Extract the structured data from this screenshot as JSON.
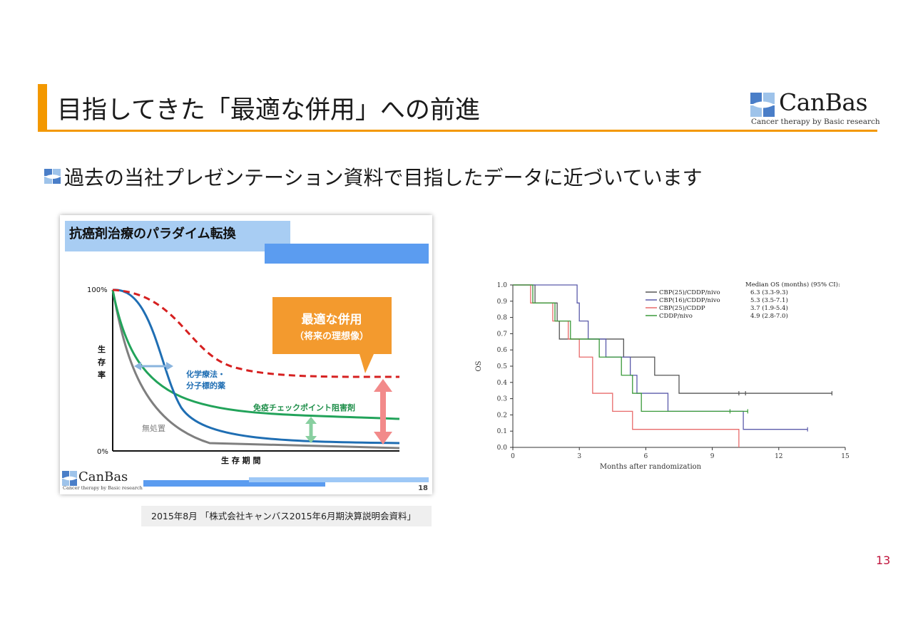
{
  "header": {
    "title": "目指してきた「最適な併用」への前進",
    "logo_name": "CanBas",
    "logo_tagline": "Cancer therapy by Basic research"
  },
  "bullet": {
    "text": "過去の当社プレゼンテーション資料で目指したデータに近づいています"
  },
  "slide": {
    "title": "抗癌剤治療のパラダイム転換",
    "y_top": "100%",
    "y_bottom": "0%",
    "y_label": "生存率",
    "x_label": "生 存 期 間",
    "callout_main": "最適な併用",
    "callout_sub": "（将来の理想像）",
    "label_chemo_1": "化学療法・",
    "label_chemo_2": "分子標的薬",
    "label_checkpoint": "免疫チェックポイント阻害剤",
    "label_untreated": "無処置",
    "page_number": "18",
    "logo_name": "CanBas",
    "logo_tagline": "Cancer therapy by Basic research"
  },
  "caption": "2015年8月 「株式会社キャンバス2015年6月期決算説明会資料」",
  "page_number": "13",
  "colors": {
    "accent": "#f39800",
    "page_number": "#c0143c"
  },
  "chart_data": {
    "type": "line",
    "step": true,
    "xlabel": "Months after randomization",
    "ylabel": "OS",
    "xlim": [
      0,
      15
    ],
    "ylim": [
      0,
      1.0
    ],
    "xticks": [
      "0",
      "3",
      "6",
      "9",
      "12",
      "15"
    ],
    "yticks": [
      "0.0",
      "0.1",
      "0.2",
      "0.3",
      "0.4",
      "0.5",
      "0.6",
      "0.7",
      "0.8",
      "0.9",
      "1.0"
    ],
    "legend_title": "Median OS (months) (95% CI):",
    "legend_position": "top-right",
    "series": [
      {
        "name": "CBP(25)/CDDP/nivo",
        "median": "6.3 (3.3-9.3)",
        "color": "#555555",
        "steps": [
          [
            0,
            1.0
          ],
          [
            1.0,
            0.889
          ],
          [
            2.0,
            0.778
          ],
          [
            2.1,
            0.667
          ],
          [
            5.0,
            0.556
          ],
          [
            6.4,
            0.444
          ],
          [
            7.5,
            0.333
          ],
          [
            14.4,
            0.333
          ]
        ],
        "censored": [
          [
            10.2,
            0.333
          ],
          [
            10.5,
            0.333
          ],
          [
            14.4,
            0.333
          ]
        ]
      },
      {
        "name": "CBP(16)/CDDP/nivo",
        "median": "5.3 (3.5-7.1)",
        "color": "#5b5baa",
        "steps": [
          [
            0,
            1.0
          ],
          [
            2.9,
            0.889
          ],
          [
            3.0,
            0.778
          ],
          [
            3.4,
            0.667
          ],
          [
            4.2,
            0.556
          ],
          [
            5.3,
            0.444
          ],
          [
            5.6,
            0.333
          ],
          [
            7.0,
            0.222
          ],
          [
            10.4,
            0.111
          ],
          [
            13.3,
            0.111
          ]
        ],
        "censored": [
          [
            13.3,
            0.111
          ]
        ]
      },
      {
        "name": "CBP(25)/CDDP",
        "median": "3.7 (1.9-5.4)",
        "color": "#e86a6a",
        "steps": [
          [
            0,
            1.0
          ],
          [
            0.8,
            0.889
          ],
          [
            1.8,
            0.778
          ],
          [
            2.5,
            0.667
          ],
          [
            3.0,
            0.556
          ],
          [
            3.6,
            0.333
          ],
          [
            4.5,
            0.222
          ],
          [
            5.4,
            0.111
          ],
          [
            10.2,
            0.111
          ],
          [
            10.2,
            0.0
          ]
        ],
        "censored": []
      },
      {
        "name": "CDDP/nivo",
        "median": "4.9 (2.8-7.0)",
        "color": "#3a9a3a",
        "steps": [
          [
            0,
            1.0
          ],
          [
            0.9,
            0.889
          ],
          [
            1.9,
            0.778
          ],
          [
            2.6,
            0.667
          ],
          [
            3.9,
            0.556
          ],
          [
            4.9,
            0.444
          ],
          [
            5.4,
            0.333
          ],
          [
            5.8,
            0.222
          ],
          [
            10.6,
            0.222
          ]
        ],
        "censored": [
          [
            9.8,
            0.222
          ],
          [
            10.6,
            0.222
          ]
        ]
      }
    ]
  }
}
